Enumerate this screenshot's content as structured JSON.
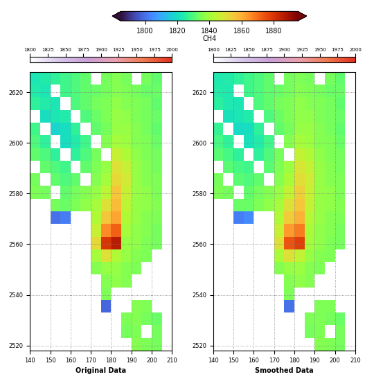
{
  "colorbar": {
    "label": "CH4",
    "range": [
      1785,
      1895
    ],
    "ticks": [
      1800,
      1820,
      1840,
      1860,
      1880
    ]
  },
  "chart_data": [
    {
      "type": "heatmap",
      "title": "Original Data",
      "xlim": [
        140,
        210
      ],
      "ylim": [
        2518,
        2628
      ],
      "xticks": [
        140,
        150,
        160,
        170,
        180,
        190,
        200,
        210
      ],
      "yticks": [
        2520,
        2540,
        2560,
        2580,
        2600,
        2620
      ],
      "grid": true,
      "x_edges": [
        140,
        145,
        150,
        155,
        160,
        165,
        170,
        175,
        180,
        185,
        190,
        195,
        200,
        205,
        210
      ],
      "y_edges": [
        2518,
        2523,
        2528,
        2533,
        2538,
        2543,
        2548,
        2553,
        2558,
        2563,
        2568,
        2573,
        2578,
        2583,
        2588,
        2593,
        2598,
        2603,
        2608,
        2613,
        2618,
        2623,
        2628
      ],
      "cells": [
        [
          null,
          null,
          null,
          null,
          null,
          null,
          null,
          null,
          null,
          null,
          1836,
          1835,
          1834,
          null
        ],
        [
          null,
          null,
          null,
          null,
          null,
          null,
          null,
          null,
          null,
          1834,
          1835,
          null,
          1834,
          null
        ],
        [
          null,
          null,
          null,
          null,
          null,
          null,
          null,
          null,
          null,
          1835,
          1836,
          1834,
          1833,
          null
        ],
        [
          null,
          null,
          null,
          null,
          null,
          null,
          null,
          1798,
          null,
          null,
          1836,
          1835,
          null,
          null
        ],
        [
          null,
          null,
          null,
          null,
          null,
          null,
          null,
          1835,
          null,
          null,
          null,
          null,
          null,
          null
        ],
        [
          null,
          null,
          null,
          null,
          null,
          null,
          null,
          1836,
          1837,
          1836,
          null,
          null,
          null,
          null
        ],
        [
          null,
          null,
          null,
          null,
          null,
          null,
          1836,
          1838,
          1838,
          1836,
          1835,
          null,
          null,
          null
        ],
        [
          null,
          null,
          null,
          null,
          null,
          null,
          1840,
          1850,
          1842,
          1838,
          1836,
          1835,
          null,
          null
        ],
        [
          null,
          null,
          null,
          null,
          null,
          null,
          1852,
          1880,
          1886,
          1838,
          1837,
          1835,
          1834,
          null
        ],
        [
          null,
          null,
          null,
          null,
          null,
          null,
          1846,
          1866,
          1872,
          1840,
          1837,
          1836,
          1834,
          null
        ],
        [
          null,
          null,
          1800,
          1802,
          null,
          null,
          1842,
          1856,
          1862,
          1842,
          1838,
          1836,
          1835,
          null
        ],
        [
          null,
          null,
          1834,
          1833,
          1835,
          1837,
          1840,
          1850,
          1858,
          1844,
          1838,
          1837,
          1836,
          null
        ],
        [
          1835,
          1834,
          null,
          1832,
          1834,
          1836,
          1838,
          1844,
          1856,
          1846,
          1838,
          1837,
          1835,
          null
        ],
        [
          1834,
          null,
          1832,
          1830,
          1832,
          null,
          1836,
          1840,
          1852,
          1848,
          1838,
          1836,
          1835,
          null
        ],
        [
          null,
          1832,
          1830,
          1828,
          null,
          1832,
          1835,
          1838,
          1850,
          1846,
          1838,
          1836,
          1834,
          null
        ],
        [
          1832,
          1830,
          1826,
          null,
          1826,
          1830,
          1834,
          null,
          1846,
          1842,
          1837,
          1835,
          1834,
          null
        ],
        [
          1830,
          1826,
          null,
          1820,
          1824,
          1828,
          null,
          1836,
          1840,
          1839,
          1836,
          1835,
          1833,
          null
        ],
        [
          1828,
          null,
          1818,
          1820,
          1826,
          null,
          1832,
          1834,
          1838,
          1838,
          1836,
          1834,
          1832,
          null
        ],
        [
          null,
          1820,
          1822,
          1824,
          null,
          1830,
          1833,
          1835,
          1838,
          1837,
          1835,
          1834,
          1833,
          null
        ],
        [
          1826,
          1824,
          1822,
          null,
          1830,
          1832,
          1834,
          1835,
          1837,
          1836,
          1835,
          1834,
          1832,
          null
        ],
        [
          1824,
          1822,
          null,
          1828,
          1830,
          1832,
          1833,
          1834,
          1836,
          1835,
          1834,
          1833,
          1833,
          null
        ],
        [
          1822,
          1824,
          1826,
          1828,
          1830,
          1832,
          null,
          1834,
          1836,
          1834,
          null,
          1834,
          1832,
          null
        ]
      ],
      "colorbar": {
        "range": [
          1800,
          2000
        ],
        "ticks": [
          1800,
          1825,
          1850,
          1875,
          1900,
          1925,
          1950,
          1975,
          2000
        ]
      }
    },
    {
      "type": "heatmap",
      "title": "Smoothed Data",
      "xlim": [
        140,
        210
      ],
      "ylim": [
        2518,
        2628
      ],
      "xticks": [
        140,
        150,
        160,
        170,
        180,
        190,
        200,
        210
      ],
      "yticks": [
        2520,
        2540,
        2560,
        2580,
        2600,
        2620
      ],
      "grid": true,
      "x_edges": [
        140,
        145,
        150,
        155,
        160,
        165,
        170,
        175,
        180,
        185,
        190,
        195,
        200,
        205,
        210
      ],
      "y_edges": [
        2518,
        2523,
        2528,
        2533,
        2538,
        2543,
        2548,
        2553,
        2558,
        2563,
        2568,
        2573,
        2578,
        2583,
        2588,
        2593,
        2598,
        2603,
        2608,
        2613,
        2618,
        2623,
        2628
      ],
      "cells": [
        [
          null,
          null,
          null,
          null,
          null,
          null,
          null,
          null,
          null,
          null,
          1836,
          1835,
          1834,
          null
        ],
        [
          null,
          null,
          null,
          null,
          null,
          null,
          null,
          null,
          null,
          1834,
          1835,
          null,
          1834,
          null
        ],
        [
          null,
          null,
          null,
          null,
          null,
          null,
          null,
          null,
          null,
          1835,
          1835,
          1834,
          1833,
          null
        ],
        [
          null,
          null,
          null,
          null,
          null,
          null,
          null,
          1800,
          null,
          null,
          1835,
          1835,
          null,
          null
        ],
        [
          null,
          null,
          null,
          null,
          null,
          null,
          null,
          1835,
          null,
          null,
          null,
          null,
          null,
          null
        ],
        [
          null,
          null,
          null,
          null,
          null,
          null,
          null,
          1836,
          1837,
          1836,
          null,
          null,
          null,
          null
        ],
        [
          null,
          null,
          null,
          null,
          null,
          null,
          1836,
          1838,
          1839,
          1836,
          1835,
          null,
          null,
          null
        ],
        [
          null,
          null,
          null,
          null,
          null,
          null,
          1841,
          1850,
          1845,
          1838,
          1836,
          1835,
          null,
          null
        ],
        [
          null,
          null,
          null,
          null,
          null,
          null,
          1850,
          1874,
          1878,
          1840,
          1837,
          1835,
          1834,
          null
        ],
        [
          null,
          null,
          null,
          null,
          null,
          null,
          1846,
          1864,
          1868,
          1841,
          1837,
          1836,
          1834,
          null
        ],
        [
          null,
          null,
          1802,
          1804,
          null,
          null,
          1842,
          1855,
          1860,
          1843,
          1838,
          1836,
          1835,
          null
        ],
        [
          null,
          null,
          1833,
          1833,
          1835,
          1837,
          1840,
          1850,
          1856,
          1845,
          1838,
          1837,
          1836,
          null
        ],
        [
          1835,
          1834,
          null,
          1832,
          1834,
          1836,
          1838,
          1845,
          1854,
          1846,
          1838,
          1837,
          1835,
          null
        ],
        [
          1834,
          null,
          1831,
          1830,
          1832,
          null,
          1836,
          1841,
          1851,
          1847,
          1838,
          1836,
          1835,
          null
        ],
        [
          null,
          1831,
          1829,
          1828,
          null,
          1831,
          1835,
          1839,
          1849,
          1845,
          1838,
          1836,
          1834,
          null
        ],
        [
          1831,
          1829,
          1826,
          null,
          1826,
          1830,
          1834,
          null,
          1845,
          1842,
          1837,
          1835,
          1834,
          null
        ],
        [
          1829,
          1826,
          null,
          1821,
          1824,
          1828,
          null,
          1836,
          1840,
          1839,
          1836,
          1835,
          1833,
          null
        ],
        [
          1827,
          null,
          1819,
          1820,
          1826,
          null,
          1832,
          1834,
          1838,
          1838,
          1836,
          1834,
          1832,
          null
        ],
        [
          null,
          1821,
          1822,
          1824,
          null,
          1830,
          1833,
          1835,
          1837,
          1837,
          1835,
          1834,
          1833,
          null
        ],
        [
          1825,
          1823,
          1822,
          null,
          1830,
          1832,
          1834,
          1835,
          1837,
          1836,
          1835,
          1834,
          1832,
          null
        ],
        [
          1824,
          1823,
          null,
          1828,
          1830,
          1832,
          1833,
          1834,
          1836,
          1835,
          1834,
          1833,
          1833,
          null
        ],
        [
          1823,
          1824,
          1826,
          1828,
          1830,
          1832,
          null,
          1834,
          1835,
          1834,
          null,
          1834,
          1832,
          null
        ]
      ],
      "colorbar": {
        "range": [
          1800,
          2000
        ],
        "ticks": [
          1800,
          1825,
          1850,
          1875,
          1900,
          1925,
          1950,
          1975,
          2000
        ]
      }
    }
  ]
}
